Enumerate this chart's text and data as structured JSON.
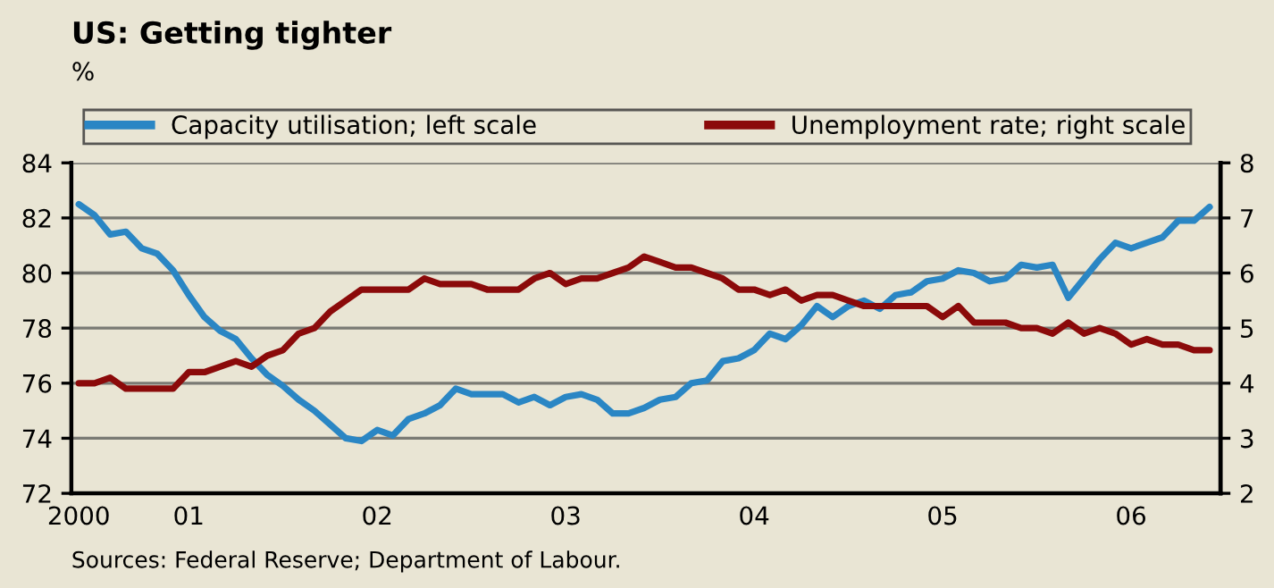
{
  "chart_data": {
    "type": "line",
    "title": "US: Getting tighter",
    "subtitle": "%",
    "annotations": [
      "Sources: Federal Reserve; Department of Labour."
    ],
    "x": [
      "2000-06",
      "2000-07",
      "2000-08",
      "2000-09",
      "2000-10",
      "2000-11",
      "2000-12",
      "2001-01",
      "2001-02",
      "2001-03",
      "2001-04",
      "2001-05",
      "2001-06",
      "2001-07",
      "2001-08",
      "2001-09",
      "2001-10",
      "2001-11",
      "2001-12",
      "2002-01",
      "2002-02",
      "2002-03",
      "2002-04",
      "2002-05",
      "2002-06",
      "2002-07",
      "2002-08",
      "2002-09",
      "2002-10",
      "2002-11",
      "2002-12",
      "2003-01",
      "2003-02",
      "2003-03",
      "2003-04",
      "2003-05",
      "2003-06",
      "2003-07",
      "2003-08",
      "2003-09",
      "2003-10",
      "2003-11",
      "2003-12",
      "2004-01",
      "2004-02",
      "2004-03",
      "2004-04",
      "2004-05",
      "2004-06",
      "2004-07",
      "2004-08",
      "2004-09",
      "2004-10",
      "2004-11",
      "2004-12",
      "2005-01",
      "2005-02",
      "2005-03",
      "2005-04",
      "2005-05",
      "2005-06",
      "2005-07",
      "2005-08",
      "2005-09",
      "2005-10",
      "2005-11",
      "2005-12",
      "2006-01",
      "2006-02",
      "2006-03",
      "2006-04",
      "2006-05",
      "2006-06"
    ],
    "series": [
      {
        "name": "Capacity utilisation; left scale",
        "color": "#2a86c4",
        "values": [
          82.5,
          82.1,
          81.4,
          81.5,
          80.9,
          80.7,
          80.1,
          79.2,
          78.4,
          77.9,
          77.6,
          76.9,
          76.3,
          75.9,
          75.4,
          75.0,
          74.5,
          74.0,
          73.9,
          74.3,
          74.1,
          74.7,
          74.9,
          75.2,
          75.8,
          75.6,
          75.6,
          75.6,
          75.3,
          75.5,
          75.2,
          75.5,
          75.6,
          75.4,
          74.9,
          74.9,
          75.1,
          75.4,
          75.5,
          76.0,
          76.1,
          76.8,
          76.9,
          77.2,
          77.8,
          77.6,
          78.1,
          78.8,
          78.4,
          78.8,
          79.0,
          78.7,
          79.2,
          79.3,
          79.7,
          79.8,
          80.1,
          80.0,
          79.7,
          79.8,
          80.3,
          80.2,
          80.3,
          79.1,
          79.8,
          80.5,
          81.1,
          80.9,
          81.1,
          81.3,
          81.9,
          81.9,
          82.4
        ]
      },
      {
        "name": "Unemployment rate; right scale",
        "color": "#8b0a0a",
        "axis": "y2",
        "values": [
          4.0,
          4.0,
          4.1,
          3.9,
          3.9,
          3.9,
          3.9,
          4.2,
          4.2,
          4.3,
          4.4,
          4.3,
          4.5,
          4.6,
          4.9,
          5.0,
          5.3,
          5.5,
          5.7,
          5.7,
          5.7,
          5.7,
          5.9,
          5.8,
          5.8,
          5.8,
          5.7,
          5.7,
          5.7,
          5.9,
          6.0,
          5.8,
          5.9,
          5.9,
          6.0,
          6.1,
          6.3,
          6.2,
          6.1,
          6.1,
          6.0,
          5.9,
          5.7,
          5.7,
          5.6,
          5.7,
          5.5,
          5.6,
          5.6,
          5.5,
          5.4,
          5.4,
          5.4,
          5.4,
          5.4,
          5.2,
          5.4,
          5.1,
          5.1,
          5.1,
          5.0,
          5.0,
          4.9,
          5.1,
          4.9,
          5.0,
          4.9,
          4.7,
          4.8,
          4.7,
          4.7,
          4.6,
          4.6
        ]
      }
    ],
    "xlim": [
      "2000-05-17",
      "2006-06-22"
    ],
    "xticks": [
      {
        "value": "2000-06",
        "label": "2000"
      },
      {
        "value": "2001-01",
        "label": "01"
      },
      {
        "value": "2002-01",
        "label": "02"
      },
      {
        "value": "2003-01",
        "label": "03"
      },
      {
        "value": "2004-01",
        "label": "04"
      },
      {
        "value": "2005-01",
        "label": "05"
      },
      {
        "value": "2006-01",
        "label": "06"
      }
    ],
    "ylim": [
      72,
      84
    ],
    "yticks": [
      72,
      74,
      76,
      78,
      80,
      82,
      84
    ],
    "y2lim": [
      2,
      8
    ],
    "y2ticks": [
      2,
      3,
      4,
      5,
      6,
      7,
      8
    ],
    "grid": "y",
    "legend": "top",
    "marker": "none",
    "line_style": "solid"
  }
}
